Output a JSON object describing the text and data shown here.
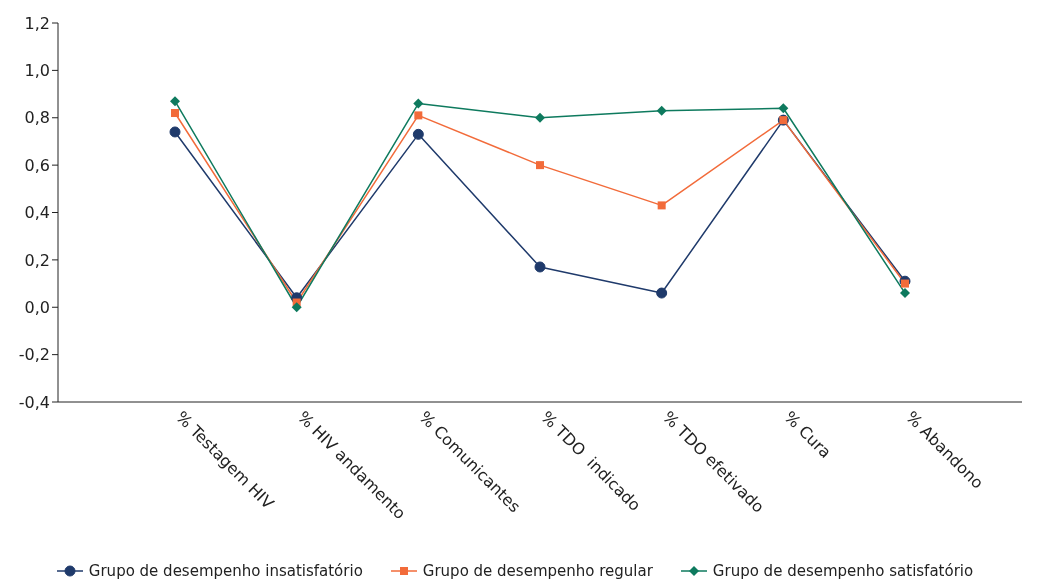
{
  "chart_data": {
    "type": "line",
    "categories": [
      "% Testagem HIV",
      "% HIV andamento",
      "% Comunicantes",
      "% TDO  indicado",
      "% TDO efetivado",
      "% Cura",
      "% Abandono"
    ],
    "series": [
      {
        "name": "Grupo de desempenho insatisfatório",
        "color": "#1f3a6b",
        "marker": "circle",
        "values": [
          0.74,
          0.04,
          0.73,
          0.17,
          0.06,
          0.79,
          0.11
        ]
      },
      {
        "name": "Grupo de desempenho regular",
        "color": "#f26b3a",
        "marker": "square",
        "values": [
          0.82,
          0.02,
          0.81,
          0.6,
          0.43,
          0.79,
          0.1
        ]
      },
      {
        "name": "Grupo de desempenho satisfatório",
        "color": "#0e7a5e",
        "marker": "diamond",
        "values": [
          0.87,
          0.0,
          0.86,
          0.8,
          0.83,
          0.84,
          0.06
        ]
      }
    ],
    "ylim": [
      -0.4,
      1.2
    ],
    "yticks": [
      {
        "value": -0.4,
        "label": "-0,4"
      },
      {
        "value": -0.2,
        "label": "-0,2"
      },
      {
        "value": 0,
        "label": "0,0"
      },
      {
        "value": 0.2,
        "label": "0,2"
      },
      {
        "value": 0.4,
        "label": "0,4"
      },
      {
        "value": 0.6,
        "label": "0,6"
      },
      {
        "value": 0.8,
        "label": "0,8"
      },
      {
        "value": 1.0,
        "label": "1,0"
      },
      {
        "value": 1.2,
        "label": "1,2"
      }
    ],
    "grid": false,
    "legend": "bottom",
    "line_style": "solid"
  }
}
